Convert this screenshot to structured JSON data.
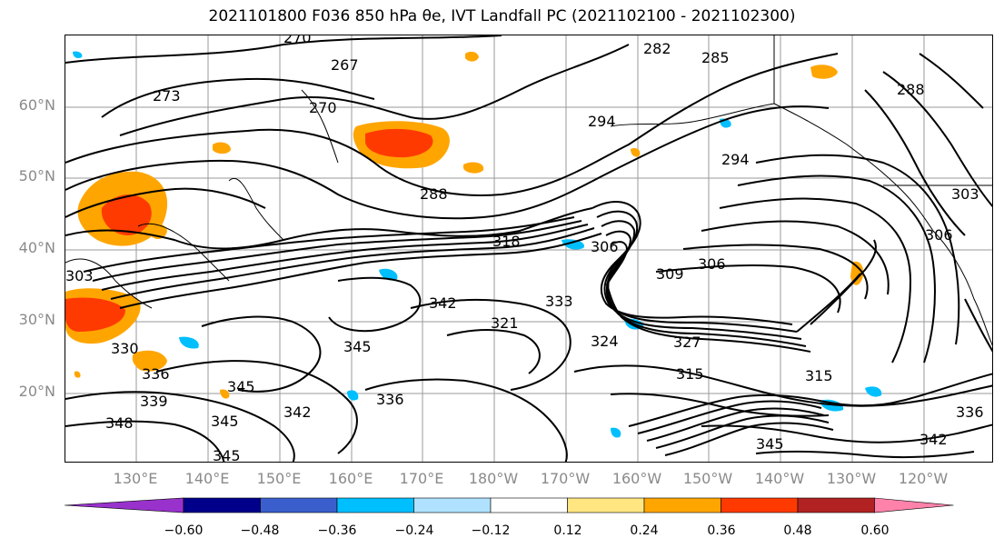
{
  "title": "2021101800 F036 850 hPa θe, IVT Landfall PC (2021102100 - 2021102300)",
  "map": {
    "lat_labels": [
      "60°N",
      "50°N",
      "40°N",
      "30°N",
      "20°N"
    ],
    "lon_labels": [
      "130°E",
      "140°E",
      "150°E",
      "160°E",
      "170°E",
      "180°W",
      "170°W",
      "160°W",
      "150°W",
      "140°W",
      "130°W",
      "120°W"
    ],
    "contour_color": "#000000",
    "gridline_color": "#9a9a9a",
    "contour_labels": [
      "270",
      "267",
      "270",
      "273",
      "282",
      "285",
      "288",
      "288",
      "294",
      "294",
      "303",
      "306",
      "306",
      "309",
      "306",
      "303",
      "315",
      "315",
      "318",
      "321",
      "324",
      "327",
      "330",
      "333",
      "336",
      "336",
      "339",
      "342",
      "342",
      "345",
      "345",
      "345",
      "348",
      "342",
      "345",
      "345",
      "336"
    ]
  },
  "colorbar": {
    "ticks": [
      "−0.60",
      "−0.48",
      "−0.36",
      "−0.24",
      "−0.12",
      "0.12",
      "0.24",
      "0.36",
      "0.48",
      "0.60"
    ],
    "colors": [
      "#9932cc",
      "#00008b",
      "#3a5fcd",
      "#00bfff",
      "#b0e2ff",
      "#ffffff",
      "#ffe680",
      "#ffa500",
      "#ff3a00",
      "#b22222",
      "#ff82ab"
    ]
  }
}
